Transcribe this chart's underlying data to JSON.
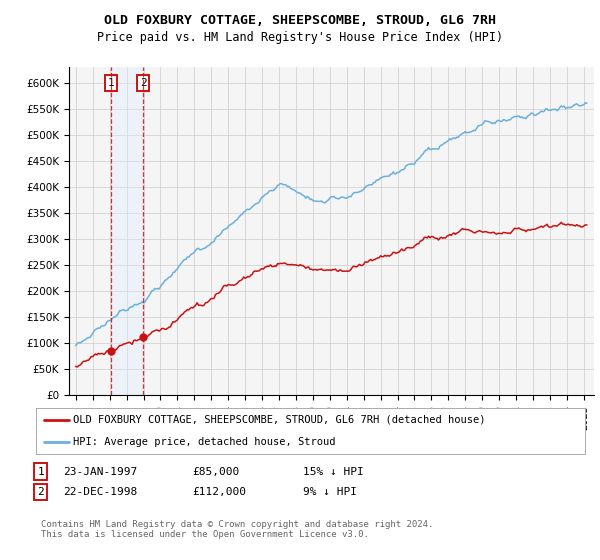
{
  "title": "OLD FOXBURY COTTAGE, SHEEPSCOMBE, STROUD, GL6 7RH",
  "subtitle": "Price paid vs. HM Land Registry's House Price Index (HPI)",
  "ylim": [
    0,
    620000
  ],
  "purchase1_date": 1997.06,
  "purchase1_price": 85000,
  "purchase2_date": 1998.97,
  "purchase2_price": 112000,
  "legend_line1": "OLD FOXBURY COTTAGE, SHEEPSCOMBE, STROUD, GL6 7RH (detached house)",
  "legend_line2": "HPI: Average price, detached house, Stroud",
  "table_row1": [
    "1",
    "23-JAN-1997",
    "£85,000",
    "15% ↓ HPI"
  ],
  "table_row2": [
    "2",
    "22-DEC-1998",
    "£112,000",
    "9% ↓ HPI"
  ],
  "footer": "Contains HM Land Registry data © Crown copyright and database right 2024.\nThis data is licensed under the Open Government Licence v3.0.",
  "hpi_color": "#6ab0de",
  "price_color": "#cc1111",
  "vline_color": "#cc1111",
  "shade_color": "#ddeeff",
  "grid_color": "#cccccc",
  "bg_color": "#f5f5f5"
}
